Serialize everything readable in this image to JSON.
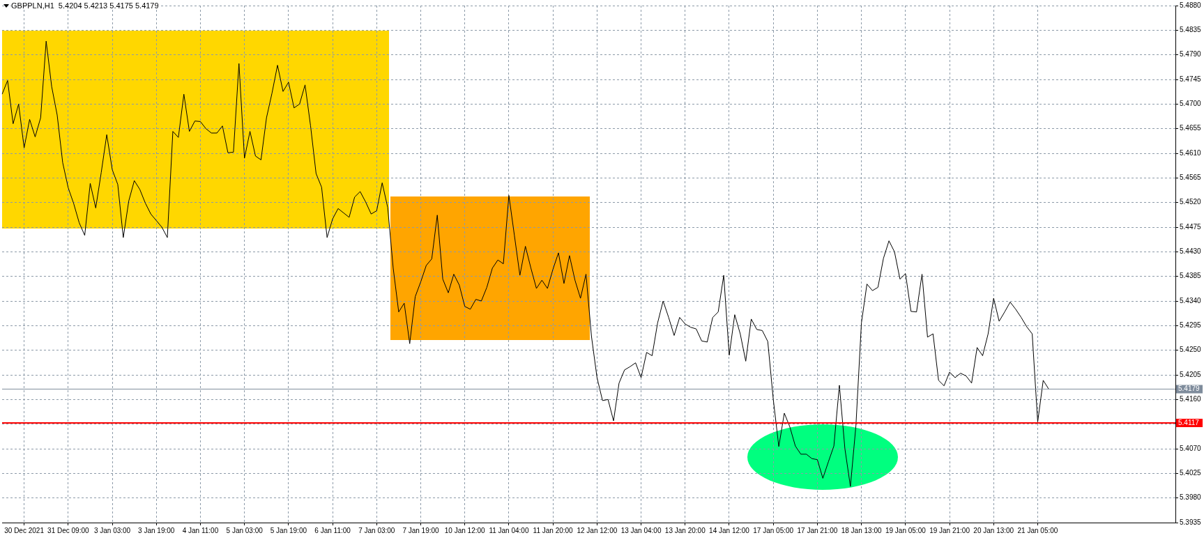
{
  "chart_data": {
    "type": "line",
    "title": "GBPPLN,H1  5.4204 5.4213 5.4175 5.4179",
    "categories": [
      null,
      null,
      null,
      null,
      "30 Dec 2021",
      null,
      null,
      null,
      null,
      null,
      null,
      null,
      "31 Dec 09:00",
      null,
      null,
      null,
      null,
      null,
      null,
      null,
      "3 Jan 03:00",
      null,
      null,
      null,
      null,
      null,
      null,
      null,
      "3 Jan 19:00",
      null,
      null,
      null,
      null,
      null,
      null,
      null,
      "4 Jan 11:00",
      null,
      null,
      null,
      null,
      null,
      null,
      null,
      "5 Jan 03:00",
      null,
      null,
      null,
      null,
      null,
      null,
      null,
      "5 Jan 19:00",
      null,
      null,
      null,
      null,
      null,
      null,
      null,
      "6 Jan 11:00",
      null,
      null,
      null,
      null,
      null,
      null,
      null,
      "7 Jan 03:00",
      null,
      null,
      null,
      null,
      null,
      null,
      null,
      "7 Jan 19:00",
      null,
      null,
      null,
      null,
      null,
      null,
      null,
      "10 Jan 12:00",
      null,
      null,
      null,
      null,
      null,
      null,
      null,
      "11 Jan 04:00",
      null,
      null,
      null,
      null,
      null,
      null,
      null,
      "11 Jan 20:00",
      null,
      null,
      null,
      null,
      null,
      null,
      null,
      "12 Jan 12:00",
      null,
      null,
      null,
      null,
      null,
      null,
      null,
      "13 Jan 04:00",
      null,
      null,
      null,
      null,
      null,
      null,
      null,
      "13 Jan 20:00",
      null,
      null,
      null,
      null,
      null,
      null,
      null,
      "14 Jan 12:00",
      null,
      null,
      null,
      null,
      null,
      null,
      null,
      "17 Jan 05:00",
      null,
      null,
      null,
      null,
      null,
      null,
      null,
      "17 Jan 21:00",
      null,
      null,
      null,
      null,
      null,
      null,
      null,
      "18 Jan 13:00",
      null,
      null,
      null,
      null,
      null,
      null,
      null,
      "19 Jan 05:00",
      null,
      null,
      null,
      null,
      null,
      null,
      null,
      "19 Jan 21:00",
      null,
      null,
      null,
      null,
      null,
      null,
      null,
      "20 Jan 13:00",
      null,
      null,
      null,
      null,
      null,
      null,
      null,
      "21 Jan 05:00",
      null,
      null,
      null,
      null,
      null,
      null,
      null,
      null,
      null,
      null,
      null,
      null,
      null,
      null,
      null,
      null,
      null,
      null,
      null,
      null,
      null,
      null,
      null,
      null,
      null
    ],
    "series": [
      {
        "color": "#000000",
        "values": [
          5.4718,
          5.4743,
          5.4664,
          5.47,
          5.462,
          5.4672,
          5.464,
          5.4675,
          5.4815,
          5.4732,
          5.468,
          5.4593,
          5.4547,
          5.4518,
          5.4483,
          5.446,
          5.4555,
          5.451,
          5.4575,
          5.4644,
          5.458,
          5.4553,
          5.4456,
          5.4523,
          5.456,
          5.4544,
          5.4519,
          5.4499,
          5.4487,
          5.4475,
          5.4456,
          5.465,
          5.4639,
          5.4718,
          5.465,
          5.4669,
          5.4668,
          5.4655,
          5.4647,
          5.4647,
          5.466,
          5.4611,
          5.4612,
          5.4774,
          5.4601,
          5.465,
          5.4605,
          5.4598,
          5.4675,
          5.472,
          5.4771,
          5.4723,
          5.474,
          5.4693,
          5.47,
          5.4735,
          5.466,
          5.4573,
          5.4548,
          5.4456,
          5.449,
          5.4509,
          5.4501,
          5.4493,
          5.453,
          5.454,
          5.4521,
          5.4499,
          5.4505,
          5.4556,
          5.4511,
          5.44,
          5.432,
          5.4336,
          5.4262,
          5.4348,
          5.4375,
          5.4405,
          5.4417,
          5.4497,
          5.438,
          5.4355,
          5.4389,
          5.4369,
          5.433,
          5.4325,
          5.4343,
          5.434,
          5.4365,
          5.44,
          5.4415,
          5.4408,
          5.4533,
          5.446,
          5.4387,
          5.444,
          5.44,
          5.4363,
          5.4378,
          5.4363,
          5.4398,
          5.4428,
          5.4372,
          5.4423,
          5.4378,
          5.4345,
          5.4389,
          5.4275,
          5.42,
          5.4158,
          5.416,
          5.4121,
          5.419,
          5.4214,
          5.422,
          5.4227,
          5.42,
          5.4246,
          5.424,
          5.43,
          5.434,
          5.431,
          5.4277,
          5.431,
          5.4298,
          5.4292,
          5.4289,
          5.4267,
          5.4265,
          5.431,
          5.432,
          5.4387,
          5.4241,
          5.4315,
          5.428,
          5.423,
          5.4307,
          5.4288,
          5.4286,
          5.4266,
          5.416,
          5.4074,
          5.4135,
          5.411,
          5.4075,
          5.406,
          5.406,
          5.4052,
          5.405,
          5.4016,
          5.4046,
          5.4075,
          5.4186,
          5.407,
          5.4001,
          5.4112,
          5.43,
          5.4371,
          5.4359,
          5.4365,
          5.4418,
          5.445,
          5.443,
          5.438,
          5.439,
          5.4321,
          5.432,
          5.4389,
          5.4274,
          5.428,
          5.4195,
          5.4185,
          5.421,
          5.42,
          5.4208,
          5.4203,
          5.419,
          5.4255,
          5.424,
          5.428,
          5.4345,
          5.4303,
          5.432,
          5.4338,
          5.4325,
          5.431,
          5.4293,
          5.428,
          5.4119,
          5.4195,
          5.4179,
          null,
          null,
          null,
          null,
          null,
          null,
          null,
          null,
          null,
          null,
          null,
          null,
          null,
          null,
          null,
          null,
          null,
          null,
          null,
          null,
          null,
          null,
          null
        ]
      }
    ],
    "ylim": [
      5.3935,
      5.488
    ],
    "yticks": [
      {
        "value": 5.3935,
        "label": "5.3935"
      },
      {
        "value": 5.398,
        "label": "5.3980"
      },
      {
        "value": 5.4025,
        "label": "5.4025"
      },
      {
        "value": 5.407,
        "label": "5.4070"
      },
      {
        "value": 5.4115,
        "label": null
      },
      {
        "value": 5.416,
        "label": "5.4160"
      },
      {
        "value": 5.4205,
        "label": "5.4205"
      },
      {
        "value": 5.425,
        "label": "5.4250"
      },
      {
        "value": 5.4295,
        "label": "5.4295"
      },
      {
        "value": 5.434,
        "label": "5.4340"
      },
      {
        "value": 5.4385,
        "label": "5.4385"
      },
      {
        "value": 5.443,
        "label": "5.4430"
      },
      {
        "value": 5.4475,
        "label": "5.4475"
      },
      {
        "value": 5.452,
        "label": "5.4520"
      },
      {
        "value": 5.4565,
        "label": "5.4565"
      },
      {
        "value": 5.461,
        "label": "5.4610"
      },
      {
        "value": 5.4655,
        "label": "5.4655"
      },
      {
        "value": 5.47,
        "label": "5.4700"
      },
      {
        "value": 5.4745,
        "label": "5.4745"
      },
      {
        "value": 5.479,
        "label": "5.4790"
      },
      {
        "value": 5.4835,
        "label": "5.4835"
      },
      {
        "value": 5.488,
        "label": "5.4880"
      }
    ],
    "ref_lines": [
      {
        "axis": "y",
        "value": 5.4179,
        "label": "5.4179",
        "color": "#7f8c9c"
      },
      {
        "axis": "y",
        "value": 5.4117,
        "label": "5.4117",
        "color": "#ff0000"
      }
    ],
    "grid": true
  }
}
